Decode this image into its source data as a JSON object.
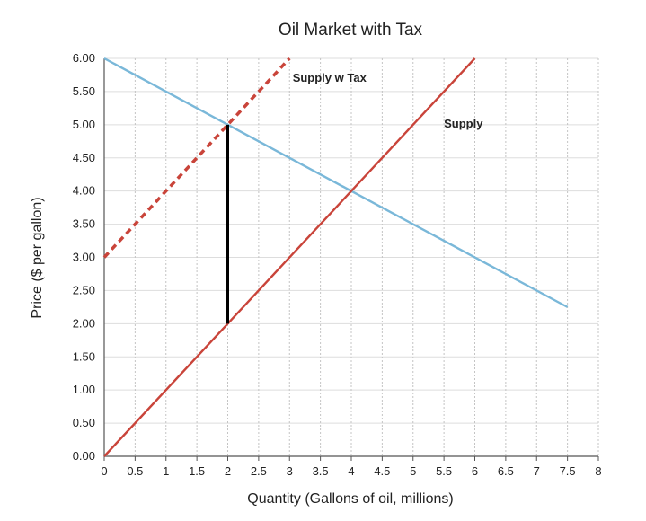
{
  "chart_data": {
    "type": "line",
    "title": "Oil Market with Tax",
    "xlabel": "Quantity (Gallons of oil, millions)",
    "ylabel": "Price ($ per gallon)",
    "xlim": [
      0,
      8
    ],
    "ylim": [
      0,
      6
    ],
    "x_ticks": [
      "0",
      "0.5",
      "1",
      "1.5",
      "2",
      "2.5",
      "3",
      "3.5",
      "4",
      "4.5",
      "5",
      "5.5",
      "6",
      "6.5",
      "7",
      "7.5",
      "8"
    ],
    "x_tick_values": [
      0,
      0.5,
      1,
      1.5,
      2,
      2.5,
      3,
      3.5,
      4,
      4.5,
      5,
      5.5,
      6,
      6.5,
      7,
      7.5,
      8
    ],
    "y_ticks": [
      "0.00",
      "0.50",
      "1.00",
      "1.50",
      "2.00",
      "2.50",
      "3.00",
      "3.50",
      "4.00",
      "4.50",
      "5.00",
      "5.50",
      "6.00"
    ],
    "y_tick_values": [
      0,
      0.5,
      1,
      1.5,
      2,
      2.5,
      3,
      3.5,
      4,
      4.5,
      5,
      5.5,
      6
    ],
    "grid": true,
    "series": [
      {
        "key": "demand",
        "x": [
          0,
          7.5
        ],
        "y": [
          6,
          2.25
        ],
        "color": "#7ab8d9",
        "style": "solid"
      },
      {
        "key": "supply",
        "name": "Supply",
        "x": [
          0,
          6
        ],
        "y": [
          0,
          6
        ],
        "color": "#c9443a",
        "style": "solid"
      },
      {
        "key": "supply_tax",
        "name": "Supply w Tax",
        "x": [
          0,
          3
        ],
        "y": [
          3,
          6
        ],
        "color": "#c9443a",
        "style": "dashed"
      }
    ],
    "tax_wedge": {
      "x": 2,
      "y": [
        2,
        5
      ],
      "color": "#000000"
    },
    "annotations": [
      {
        "text": "Supply w Tax",
        "x": 3.05,
        "y": 5.65
      },
      {
        "text": "Supply",
        "x": 5.5,
        "y": 4.96
      }
    ]
  }
}
